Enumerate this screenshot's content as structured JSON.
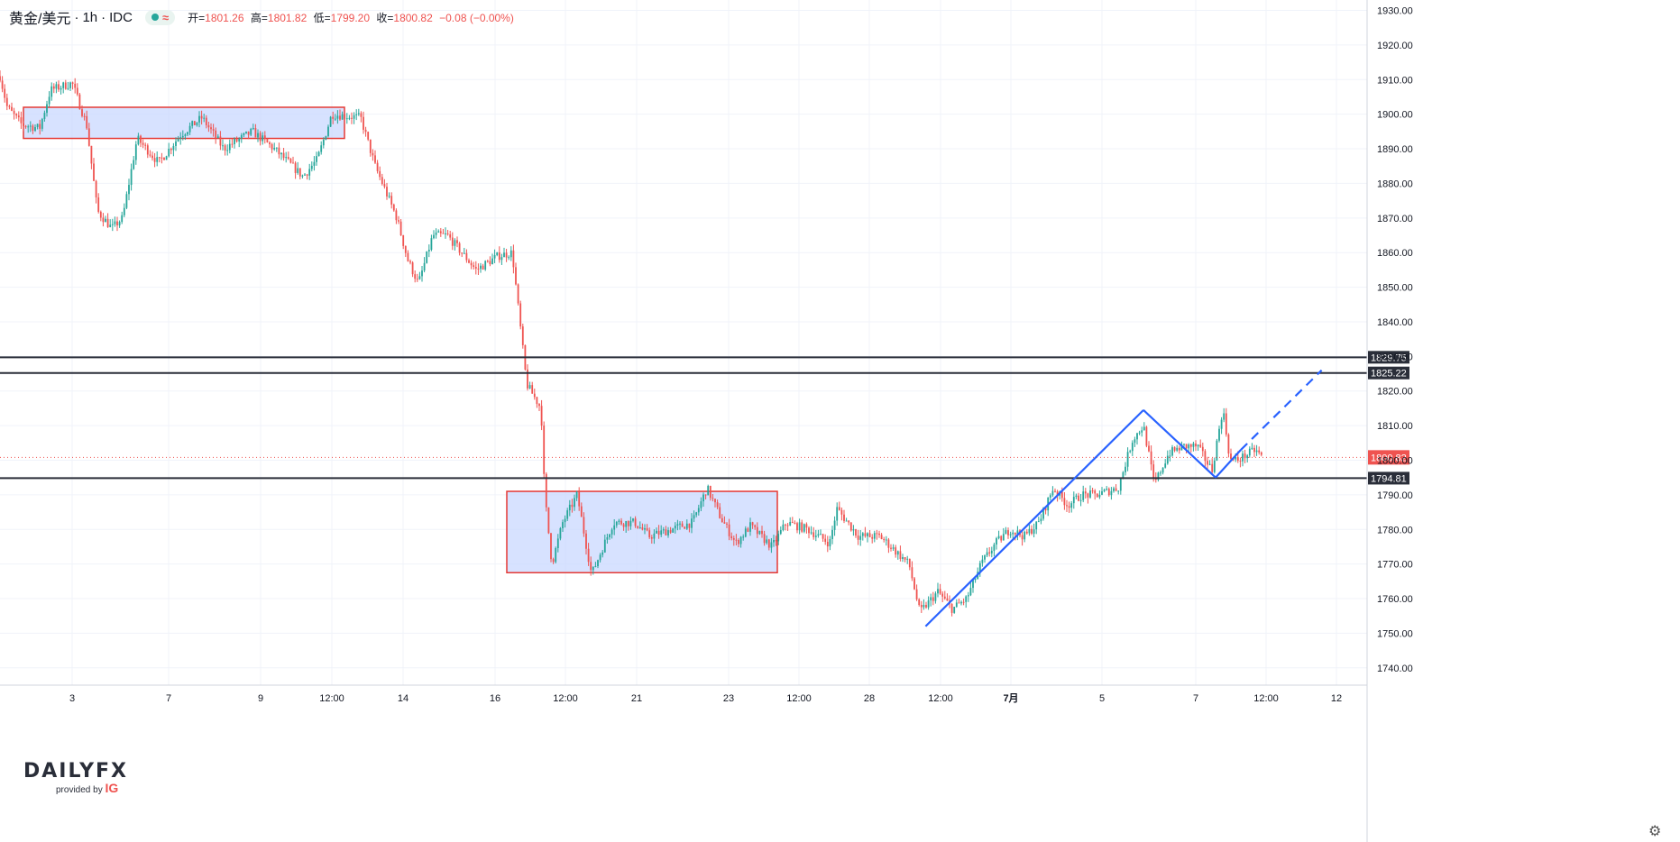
{
  "header": {
    "symbol": "黄金/美元",
    "interval": "1h",
    "source": "IDC",
    "open_label": "开=",
    "open": "1801.26",
    "high_label": "高=",
    "high": "1801.82",
    "low_label": "低=",
    "low": "1799.20",
    "close_label": "收=",
    "close": "1800.82",
    "change": "−0.08 (−0.00%)"
  },
  "logo": {
    "brand": "DAILYFX",
    "provided_by": "provided by",
    "ig": "IG"
  },
  "colors": {
    "up": "#26a69a",
    "down": "#ef5350",
    "box_fill": "#c9d8ff",
    "box_border": "#e53935",
    "level": "#2a2e39",
    "trend": "#2962ff",
    "last_price": "#ef5350"
  },
  "chart_data": {
    "type": "candlestick",
    "instrument": "黄金/美元",
    "y_axis": {
      "min": 1735,
      "max": 1933,
      "ticks": [
        1740,
        1750,
        1760,
        1770,
        1780,
        1790,
        1800,
        1810,
        1820,
        1830,
        1840,
        1850,
        1860,
        1870,
        1880,
        1890,
        1900,
        1910,
        1920,
        1930
      ]
    },
    "x_ticks": [
      "3",
      "7",
      "9",
      "12:00",
      "14",
      "16",
      "12:00",
      "21",
      "23",
      "12:00",
      "28",
      "12:00",
      "7月",
      "5",
      "7",
      "12:00",
      "12"
    ],
    "horizontal_levels": [
      1829.75,
      1825.22,
      1794.81
    ],
    "last_price": 1800.82,
    "zones": [
      {
        "x_start": 0.03,
        "x_end": 0.5,
        "y_low": 1893,
        "y_high": 1902
      },
      {
        "x_start": 0.7,
        "x_end": 1.1,
        "y_low": 1767.5,
        "y_high": 1791
      }
    ],
    "price_path": [
      [
        0.0,
        1911
      ],
      [
        0.01,
        1902
      ],
      [
        0.03,
        1897
      ],
      [
        0.055,
        1896
      ],
      [
        0.07,
        1907
      ],
      [
        0.1,
        1909
      ],
      [
        0.12,
        1897
      ],
      [
        0.135,
        1872
      ],
      [
        0.155,
        1867
      ],
      [
        0.17,
        1870
      ],
      [
        0.19,
        1893
      ],
      [
        0.22,
        1886
      ],
      [
        0.25,
        1894
      ],
      [
        0.28,
        1899
      ],
      [
        0.31,
        1890
      ],
      [
        0.35,
        1895
      ],
      [
        0.38,
        1890
      ],
      [
        0.42,
        1882
      ],
      [
        0.44,
        1887
      ],
      [
        0.46,
        1900
      ],
      [
        0.5,
        1899
      ],
      [
        0.52,
        1885
      ],
      [
        0.55,
        1870
      ],
      [
        0.565,
        1858
      ],
      [
        0.58,
        1851
      ],
      [
        0.6,
        1865
      ],
      [
        0.62,
        1865
      ],
      [
        0.64,
        1860
      ],
      [
        0.66,
        1855
      ],
      [
        0.69,
        1859
      ],
      [
        0.71,
        1860
      ],
      [
        0.73,
        1822
      ],
      [
        0.75,
        1815
      ],
      [
        0.755,
        1790
      ],
      [
        0.765,
        1770
      ],
      [
        0.78,
        1782
      ],
      [
        0.8,
        1790
      ],
      [
        0.82,
        1767
      ],
      [
        0.83,
        1772
      ],
      [
        0.85,
        1782
      ],
      [
        0.88,
        1782
      ],
      [
        0.9,
        1778
      ],
      [
        0.93,
        1780
      ],
      [
        0.96,
        1782
      ],
      [
        0.98,
        1792
      ],
      [
        1.0,
        1783
      ],
      [
        1.02,
        1776
      ],
      [
        1.04,
        1781
      ],
      [
        1.07,
        1775
      ],
      [
        1.09,
        1782
      ],
      [
        1.12,
        1780
      ],
      [
        1.15,
        1776
      ],
      [
        1.16,
        1786
      ],
      [
        1.19,
        1778
      ],
      [
        1.22,
        1778
      ],
      [
        1.24,
        1774
      ],
      [
        1.26,
        1770
      ],
      [
        1.275,
        1756
      ],
      [
        1.3,
        1762
      ],
      [
        1.32,
        1757
      ],
      [
        1.34,
        1760
      ],
      [
        1.36,
        1770
      ],
      [
        1.38,
        1776
      ],
      [
        1.4,
        1780
      ],
      [
        1.42,
        1778
      ],
      [
        1.44,
        1782
      ],
      [
        1.46,
        1792
      ],
      [
        1.48,
        1787
      ],
      [
        1.5,
        1790
      ],
      [
        1.52,
        1790
      ],
      [
        1.55,
        1792
      ],
      [
        1.57,
        1806
      ],
      [
        1.585,
        1810
      ],
      [
        1.6,
        1793
      ],
      [
        1.62,
        1802
      ],
      [
        1.64,
        1804
      ],
      [
        1.66,
        1804
      ],
      [
        1.68,
        1797
      ],
      [
        1.695,
        1815
      ],
      [
        1.705,
        1800
      ],
      [
        1.715,
        1800
      ],
      [
        1.74,
        1803
      ],
      [
        1.75,
        1800.82
      ]
    ],
    "trendlines": [
      {
        "style": "solid",
        "points": [
          [
            1.283,
            1752
          ],
          [
            1.585,
            1814.5
          ]
        ]
      },
      {
        "style": "solid",
        "points": [
          [
            1.585,
            1814.5
          ],
          [
            1.685,
            1795
          ]
        ]
      },
      {
        "style": "solid",
        "points": [
          [
            1.685,
            1795
          ],
          [
            1.72,
            1803
          ]
        ]
      },
      {
        "style": "dashed",
        "points": [
          [
            1.72,
            1803
          ],
          [
            1.832,
            1826
          ]
        ]
      }
    ]
  }
}
